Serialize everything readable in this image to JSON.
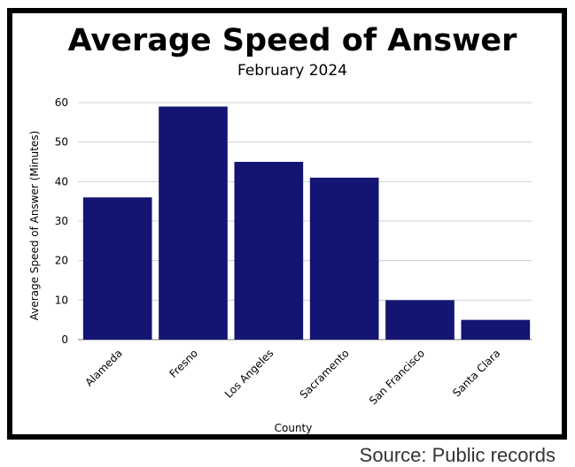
{
  "chart_data": {
    "type": "bar",
    "title": "Average Speed of Answer",
    "subtitle": "February 2024",
    "xlabel": "County",
    "ylabel": "Average Speed of Answer (Minutes)",
    "categories": [
      "Alameda",
      "Fresno",
      "Los Angeles",
      "Sacramento",
      "San Francisco",
      "Santa Clara"
    ],
    "values": [
      36,
      59,
      45,
      41,
      10,
      5
    ],
    "ylim": [
      0,
      60
    ],
    "yticks": [
      0,
      10,
      20,
      30,
      40,
      50,
      60
    ],
    "grid": true,
    "legend": "none",
    "colors": {
      "bar": "#141473",
      "grid": "#d0d0d0",
      "axis": "#999999"
    }
  },
  "source": "Source: Public records"
}
